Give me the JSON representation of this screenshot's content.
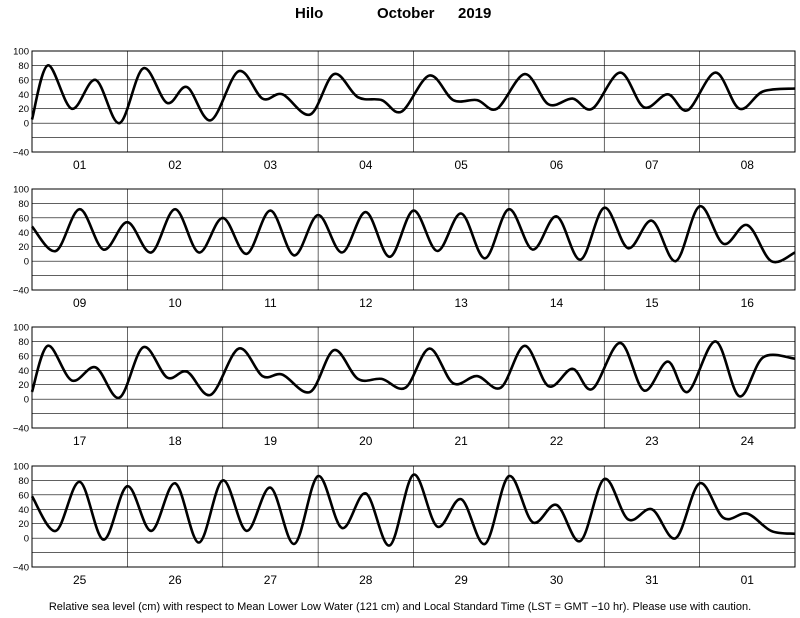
{
  "title": {
    "station": "Hilo",
    "month": "October",
    "year": "2019"
  },
  "footer": "Relative sea level (cm) with respect to Mean Lower Low Water (121 cm) and Local Standard Time (LST = GMT −10 hr). Please use with caution.",
  "chart_data": {
    "type": "line",
    "ylim": [
      -40,
      100
    ],
    "yticks": [
      "100",
      "80",
      "60",
      "40",
      "20",
      "0",
      "−40"
    ],
    "ytick_values": [
      100,
      80,
      60,
      40,
      20,
      0,
      -40
    ],
    "ygrid_values": [
      100,
      80,
      60,
      40,
      20,
      0,
      -20,
      -40
    ],
    "grid": true,
    "line_color": "#000000",
    "x_unit": "hours from panel start (1 day = 24)",
    "panels": [
      {
        "days": [
          "01",
          "02",
          "03",
          "04",
          "05",
          "06",
          "07",
          "08"
        ],
        "points": [
          [
            0,
            5
          ],
          [
            4,
            80
          ],
          [
            10,
            20
          ],
          [
            16,
            60
          ],
          [
            22,
            0
          ],
          [
            28,
            76
          ],
          [
            34,
            28
          ],
          [
            39,
            50
          ],
          [
            45,
            4
          ],
          [
            52,
            72
          ],
          [
            58,
            34
          ],
          [
            63,
            40
          ],
          [
            70,
            12
          ],
          [
            76,
            68
          ],
          [
            82,
            36
          ],
          [
            88,
            32
          ],
          [
            93,
            16
          ],
          [
            100,
            66
          ],
          [
            106,
            32
          ],
          [
            112,
            32
          ],
          [
            117,
            20
          ],
          [
            124,
            68
          ],
          [
            130,
            26
          ],
          [
            136,
            34
          ],
          [
            141,
            20
          ],
          [
            148,
            70
          ],
          [
            154,
            22
          ],
          [
            160,
            40
          ],
          [
            165,
            18
          ],
          [
            172,
            70
          ],
          [
            178,
            20
          ],
          [
            184,
            44
          ],
          [
            192,
            48
          ]
        ]
      },
      {
        "days": [
          "09",
          "10",
          "11",
          "12",
          "13",
          "14",
          "15",
          "16"
        ],
        "points": [
          [
            0,
            48
          ],
          [
            6,
            14
          ],
          [
            12,
            72
          ],
          [
            18,
            16
          ],
          [
            24,
            54
          ],
          [
            30,
            12
          ],
          [
            36,
            72
          ],
          [
            42,
            12
          ],
          [
            48,
            60
          ],
          [
            54,
            10
          ],
          [
            60,
            70
          ],
          [
            66,
            8
          ],
          [
            72,
            64
          ],
          [
            78,
            12
          ],
          [
            84,
            68
          ],
          [
            90,
            6
          ],
          [
            96,
            70
          ],
          [
            102,
            14
          ],
          [
            108,
            66
          ],
          [
            114,
            4
          ],
          [
            120,
            72
          ],
          [
            126,
            16
          ],
          [
            132,
            62
          ],
          [
            138,
            2
          ],
          [
            144,
            74
          ],
          [
            150,
            18
          ],
          [
            156,
            56
          ],
          [
            162,
            0
          ],
          [
            168,
            76
          ],
          [
            174,
            24
          ],
          [
            180,
            50
          ],
          [
            186,
            0
          ],
          [
            192,
            12
          ]
        ]
      },
      {
        "days": [
          "17",
          "18",
          "19",
          "20",
          "21",
          "22",
          "23",
          "24"
        ],
        "points": [
          [
            0,
            10
          ],
          [
            4,
            74
          ],
          [
            10,
            26
          ],
          [
            16,
            44
          ],
          [
            22,
            2
          ],
          [
            28,
            72
          ],
          [
            34,
            30
          ],
          [
            39,
            38
          ],
          [
            45,
            6
          ],
          [
            52,
            70
          ],
          [
            58,
            32
          ],
          [
            63,
            34
          ],
          [
            70,
            10
          ],
          [
            76,
            68
          ],
          [
            82,
            28
          ],
          [
            88,
            28
          ],
          [
            94,
            16
          ],
          [
            100,
            70
          ],
          [
            106,
            22
          ],
          [
            112,
            32
          ],
          [
            118,
            16
          ],
          [
            124,
            74
          ],
          [
            130,
            18
          ],
          [
            136,
            42
          ],
          [
            141,
            14
          ],
          [
            148,
            78
          ],
          [
            154,
            12
          ],
          [
            160,
            52
          ],
          [
            165,
            10
          ],
          [
            172,
            80
          ],
          [
            178,
            4
          ],
          [
            184,
            58
          ],
          [
            192,
            56
          ]
        ]
      },
      {
        "days": [
          "25",
          "26",
          "27",
          "28",
          "29",
          "30",
          "31",
          "01"
        ],
        "points": [
          [
            0,
            58
          ],
          [
            6,
            10
          ],
          [
            12,
            78
          ],
          [
            18,
            -2
          ],
          [
            24,
            72
          ],
          [
            30,
            10
          ],
          [
            36,
            76
          ],
          [
            42,
            -6
          ],
          [
            48,
            80
          ],
          [
            54,
            10
          ],
          [
            60,
            70
          ],
          [
            66,
            -8
          ],
          [
            72,
            86
          ],
          [
            78,
            14
          ],
          [
            84,
            62
          ],
          [
            90,
            -10
          ],
          [
            96,
            88
          ],
          [
            102,
            16
          ],
          [
            108,
            54
          ],
          [
            114,
            -8
          ],
          [
            120,
            86
          ],
          [
            126,
            22
          ],
          [
            132,
            46
          ],
          [
            138,
            -4
          ],
          [
            144,
            82
          ],
          [
            150,
            26
          ],
          [
            156,
            40
          ],
          [
            162,
            0
          ],
          [
            168,
            76
          ],
          [
            174,
            28
          ],
          [
            180,
            34
          ],
          [
            186,
            10
          ],
          [
            192,
            6
          ]
        ]
      }
    ]
  }
}
